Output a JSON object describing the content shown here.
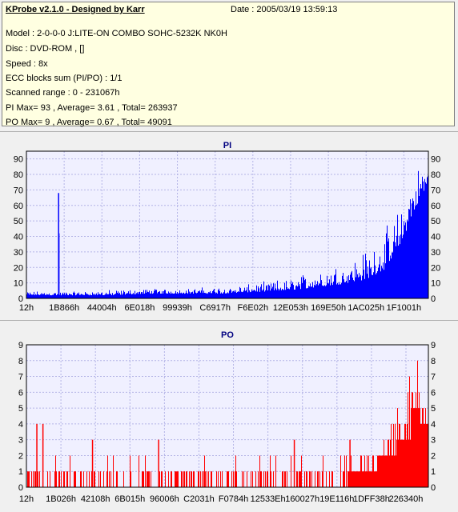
{
  "header": {
    "title": "KProbe v2.1.0 - Designed by Karr",
    "date": "Date : 2005/03/19 13:59:13",
    "lines": [
      "Model : 2-0-0-0 J:LITE-ON COMBO SOHC-5232K NK0H",
      "Disc : DVD-ROM ,  []",
      "Speed : 8x",
      "ECC blocks sum (PI/PO) : 1/1",
      "Scanned range : 0 - 231067h",
      "PI Max= 93 , Average= 3.61 , Total= 263937",
      "PO Max= 9 , Average= 0.67 , Total= 49091"
    ]
  },
  "colors": {
    "pi": "#0000ff",
    "po": "#ff0000",
    "plot_bg": "#f0f0ff",
    "grid": "#b4b4e6",
    "title": "#000080"
  },
  "chart_data": [
    {
      "type": "bar",
      "title": "PI",
      "ylim": [
        0,
        95
      ],
      "yticks": [
        0,
        10,
        20,
        30,
        40,
        50,
        60,
        70,
        80,
        90
      ],
      "xticks": [
        "12h",
        "1B866h",
        "44004h",
        "6E018h",
        "99939h",
        "C6917h",
        "F6E02h",
        "12E053h",
        "169E50h",
        "1AC025h",
        "1F1001h"
      ],
      "xlim": [
        0,
        231067
      ],
      "grid": true,
      "envelope": {
        "x": [
          0,
          5000,
          12000,
          16000,
          20000,
          30000,
          50000,
          70000,
          90000,
          110000,
          130000,
          150000,
          165000,
          180000,
          195000,
          205000,
          212000,
          217000,
          221000,
          225000,
          229000,
          231067
        ],
        "base": [
          2,
          2,
          2,
          2,
          2,
          2,
          2,
          3,
          3,
          3,
          4,
          5,
          7,
          9,
          12,
          18,
          28,
          40,
          52,
          62,
          70,
          75
        ],
        "peak": [
          5,
          5,
          5,
          5,
          5,
          5,
          6,
          7,
          7,
          8,
          10,
          14,
          20,
          25,
          35,
          45,
          58,
          70,
          80,
          88,
          93,
          90
        ]
      },
      "spikes": [
        {
          "x": 18500,
          "y": 68
        },
        {
          "x": 18700,
          "y": 42
        }
      ]
    },
    {
      "type": "bar",
      "title": "PO",
      "ylim": [
        0,
        9
      ],
      "yticks": [
        0,
        1,
        2,
        3,
        4,
        5,
        6,
        7,
        8,
        9
      ],
      "xticks": [
        "12h",
        "1B026h",
        "42108h",
        "6B015h",
        "96006h",
        "C2031h",
        "F0784h",
        "12533Eh",
        "160027h",
        "19E116h",
        "1DFF38h",
        "226340h"
      ],
      "xlim": [
        0,
        231067
      ],
      "grid": true,
      "envelope": {
        "x": [
          0,
          20000,
          60000,
          100000,
          140000,
          180000,
          200000,
          205000,
          210000,
          215000,
          220000,
          225000,
          231067
        ],
        "base": [
          0,
          0,
          0,
          0,
          0,
          0,
          1,
          2,
          2,
          3,
          3,
          4,
          4
        ],
        "peak": [
          2,
          2,
          2,
          2,
          2,
          2,
          3,
          4,
          5,
          7,
          8,
          9,
          8
        ]
      },
      "spikes": [
        {
          "x": 6000,
          "y": 4
        },
        {
          "x": 9500,
          "y": 4
        },
        {
          "x": 38000,
          "y": 3
        },
        {
          "x": 76000,
          "y": 3
        },
        {
          "x": 154000,
          "y": 3
        },
        {
          "x": 186000,
          "y": 3
        }
      ]
    }
  ]
}
